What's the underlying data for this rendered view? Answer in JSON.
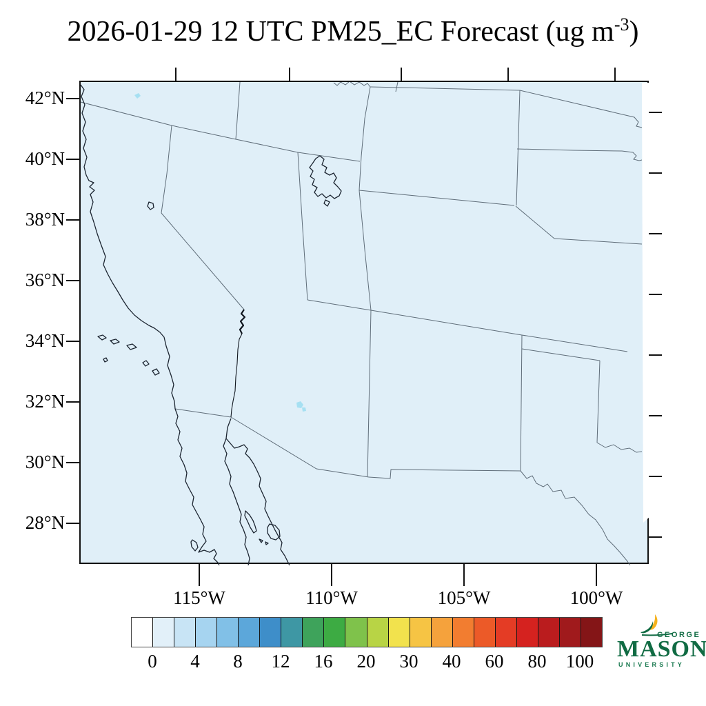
{
  "title": {
    "prefix": "2026-01-29 12 UTC PM25_EC Forecast (ug m",
    "exponent": "-3",
    "suffix": ")"
  },
  "axes": {
    "lat_ticks": [
      "42°N",
      "40°N",
      "38°N",
      "36°N",
      "34°N",
      "32°N",
      "30°N",
      "28°N"
    ],
    "lon_ticks": [
      "115°W",
      "110°W",
      "105°W",
      "100°W"
    ]
  },
  "colorbar": {
    "tick_labels": [
      "0",
      "4",
      "8",
      "12",
      "16",
      "20",
      "30",
      "40",
      "60",
      "80",
      "100"
    ],
    "colors": [
      "#ffffff",
      "#e2f0f9",
      "#c8e4f5",
      "#a6d4f0",
      "#81c0e7",
      "#5ca7da",
      "#3e8ec9",
      "#3e97a4",
      "#3ea35b",
      "#3dab43",
      "#7fc24b",
      "#b8d445",
      "#f2e24d",
      "#f6c444",
      "#f5a23c",
      "#f27d30",
      "#ec5a28",
      "#e43c25",
      "#d5221f",
      "#ba1c1e",
      "#a01a1c",
      "#841517"
    ]
  },
  "map": {
    "background_color": "#e0eff8",
    "coastline_color": "#1b2430",
    "state_border_color": "#5f6d79",
    "low_value_patch_color": "#a6e0f2"
  },
  "logo": {
    "top": "GEORGE",
    "middle": "MASON",
    "bottom": "UNIVERSITY",
    "green": "#106b43",
    "gold": "#f5b21e"
  }
}
